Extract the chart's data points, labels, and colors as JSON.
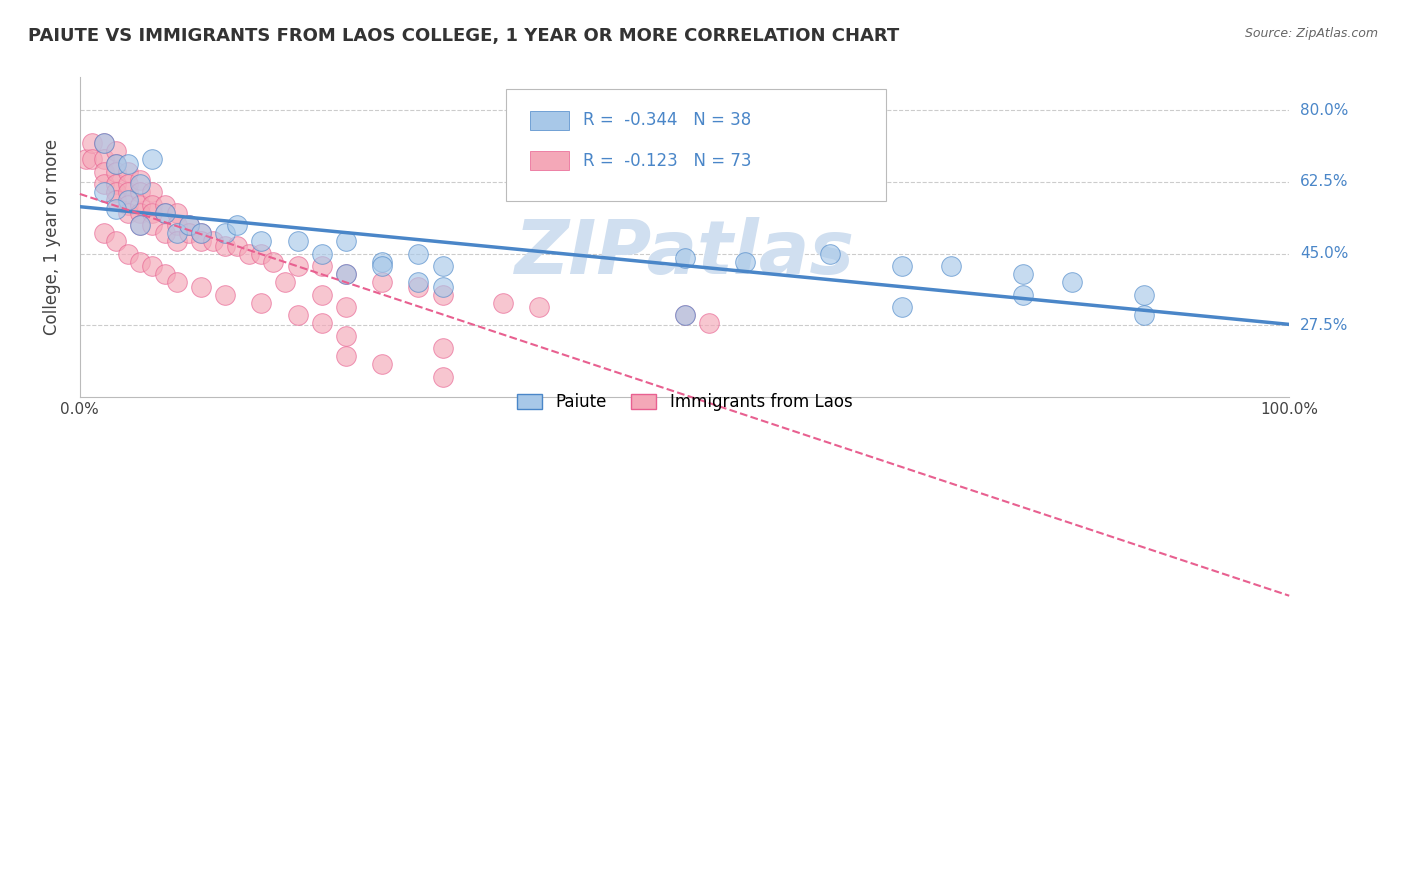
{
  "title": "PAIUTE VS IMMIGRANTS FROM LAOS COLLEGE, 1 YEAR OR MORE CORRELATION CHART",
  "source": "Source: ZipAtlas.com",
  "ylabel": "College, 1 year or more",
  "xlim": [
    0.0,
    1.0
  ],
  "ylim": [
    0.1,
    0.88
  ],
  "yticks": [
    0.275,
    0.45,
    0.625,
    0.8
  ],
  "ytick_labels": [
    "27.5%",
    "45.0%",
    "62.5%",
    "80.0%"
  ],
  "xticks": [
    0.0,
    1.0
  ],
  "xtick_labels": [
    "0.0%",
    "100.0%"
  ],
  "legend_r1": "-0.344",
  "legend_n1": "38",
  "legend_r2": "-0.123",
  "legend_n2": "73",
  "color_blue": "#a8c8e8",
  "color_pink": "#f4a8b8",
  "color_blue_line": "#4a86c8",
  "color_pink_line": "#e86090",
  "watermark_color": "#d0dff0",
  "paiute_x": [
    0.02,
    0.03,
    0.04,
    0.05,
    0.06,
    0.04,
    0.02,
    0.03,
    0.05,
    0.07,
    0.08,
    0.09,
    0.1,
    0.12,
    0.13,
    0.15,
    0.18,
    0.2,
    0.22,
    0.25,
    0.28,
    0.3,
    0.22,
    0.25,
    0.28,
    0.3,
    0.5,
    0.55,
    0.62,
    0.68,
    0.72,
    0.78,
    0.82,
    0.88,
    0.5,
    0.68,
    0.78,
    0.88
  ],
  "paiute_y": [
    0.72,
    0.67,
    0.67,
    0.62,
    0.68,
    0.58,
    0.6,
    0.56,
    0.52,
    0.55,
    0.5,
    0.52,
    0.5,
    0.5,
    0.52,
    0.48,
    0.48,
    0.45,
    0.48,
    0.43,
    0.45,
    0.42,
    0.4,
    0.42,
    0.38,
    0.37,
    0.44,
    0.43,
    0.45,
    0.42,
    0.42,
    0.4,
    0.38,
    0.35,
    0.3,
    0.32,
    0.35,
    0.3
  ],
  "laos_x": [
    0.005,
    0.01,
    0.01,
    0.02,
    0.02,
    0.02,
    0.02,
    0.03,
    0.03,
    0.03,
    0.03,
    0.03,
    0.03,
    0.04,
    0.04,
    0.04,
    0.04,
    0.04,
    0.05,
    0.05,
    0.05,
    0.05,
    0.05,
    0.06,
    0.06,
    0.06,
    0.06,
    0.07,
    0.07,
    0.07,
    0.08,
    0.08,
    0.08,
    0.09,
    0.09,
    0.1,
    0.1,
    0.11,
    0.12,
    0.13,
    0.14,
    0.15,
    0.16,
    0.18,
    0.2,
    0.22,
    0.25,
    0.28,
    0.3,
    0.35,
    0.38,
    0.17,
    0.2,
    0.22,
    0.02,
    0.03,
    0.04,
    0.05,
    0.06,
    0.07,
    0.08,
    0.1,
    0.12,
    0.15,
    0.18,
    0.2,
    0.22,
    0.3,
    0.5,
    0.52,
    0.22,
    0.25,
    0.3
  ],
  "laos_y": [
    0.68,
    0.72,
    0.68,
    0.72,
    0.68,
    0.65,
    0.62,
    0.7,
    0.67,
    0.65,
    0.62,
    0.6,
    0.58,
    0.65,
    0.62,
    0.6,
    0.57,
    0.55,
    0.63,
    0.6,
    0.57,
    0.55,
    0.52,
    0.6,
    0.57,
    0.55,
    0.52,
    0.57,
    0.55,
    0.5,
    0.55,
    0.52,
    0.48,
    0.52,
    0.5,
    0.5,
    0.48,
    0.48,
    0.47,
    0.47,
    0.45,
    0.45,
    0.43,
    0.42,
    0.42,
    0.4,
    0.38,
    0.37,
    0.35,
    0.33,
    0.32,
    0.38,
    0.35,
    0.32,
    0.5,
    0.48,
    0.45,
    0.43,
    0.42,
    0.4,
    0.38,
    0.37,
    0.35,
    0.33,
    0.3,
    0.28,
    0.25,
    0.22,
    0.3,
    0.28,
    0.2,
    0.18,
    0.15
  ]
}
